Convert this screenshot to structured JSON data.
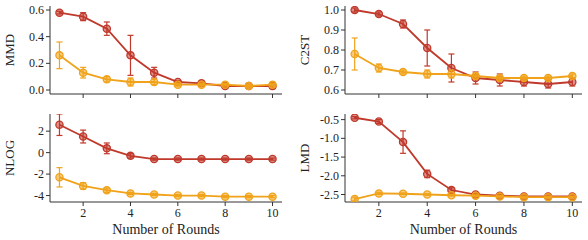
{
  "chart_data": [
    {
      "type": "line",
      "ylabel": "MMD",
      "tick_labels": "y",
      "marker": "circle",
      "x": [
        1,
        2,
        3,
        4,
        5,
        6,
        7,
        8,
        9,
        10
      ],
      "xlim": [
        0.6,
        10.4
      ],
      "xticks": [
        2,
        4,
        6,
        8,
        10
      ],
      "ylim": [
        -0.03,
        0.63
      ],
      "yticks": [
        {
          "value": 0,
          "label": "0.0"
        },
        {
          "value": 0.2,
          "label": "0.2"
        },
        {
          "value": 0.4,
          "label": "0.4"
        },
        {
          "value": 0.6,
          "label": "0.6"
        }
      ],
      "series": [
        {
          "color": "#c0392b",
          "values": [
            0.58,
            0.55,
            0.46,
            0.26,
            0.13,
            0.06,
            0.05,
            0.03,
            0.03,
            0.03
          ],
          "errors": [
            0.01,
            0.03,
            0.05,
            0.15,
            0.04,
            0.01,
            0.01,
            0.01,
            0.01,
            0.02
          ]
        },
        {
          "color": "#f0a31a",
          "values": [
            0.26,
            0.13,
            0.08,
            0.06,
            0.06,
            0.04,
            0.04,
            0.04,
            0.03,
            0.04
          ],
          "errors": [
            0.1,
            0.04,
            0.02,
            0.03,
            0.02,
            0.01,
            0.01,
            0.01,
            0.01,
            0.01
          ]
        }
      ]
    },
    {
      "type": "line",
      "ylabel": "C2ST",
      "tick_labels": "y",
      "marker": "circle",
      "x": [
        1,
        2,
        3,
        4,
        5,
        6,
        7,
        8,
        9,
        10
      ],
      "xlim": [
        0.6,
        10.4
      ],
      "xticks": [
        2,
        4,
        6,
        8,
        10
      ],
      "ylim": [
        0.58,
        1.02
      ],
      "yticks": [
        0.6,
        0.7,
        0.8,
        0.9,
        {
          "value": 1,
          "label": "1.0"
        }
      ],
      "series": [
        {
          "color": "#c0392b",
          "values": [
            1.0,
            0.98,
            0.93,
            0.81,
            0.71,
            0.66,
            0.65,
            0.64,
            0.63,
            0.64
          ],
          "errors": [
            0.01,
            0.01,
            0.02,
            0.09,
            0.07,
            0.03,
            0.03,
            0.02,
            0.02,
            0.02
          ]
        },
        {
          "color": "#f0a31a",
          "values": [
            0.78,
            0.71,
            0.69,
            0.68,
            0.68,
            0.67,
            0.66,
            0.66,
            0.66,
            0.67
          ],
          "errors": [
            0.08,
            0.02,
            0.01,
            0.02,
            0.02,
            0.01,
            0.01,
            0.01,
            0.01,
            0.01
          ]
        }
      ]
    },
    {
      "type": "line",
      "ylabel": "NLOG",
      "xlabel": "Number of Rounds",
      "marker": "circle",
      "x": [
        1,
        2,
        3,
        4,
        5,
        6,
        7,
        8,
        9,
        10
      ],
      "xlim": [
        0.6,
        10.4
      ],
      "xticks": [
        2,
        4,
        6,
        8,
        10
      ],
      "ylim": [
        -4.6,
        3.6
      ],
      "yticks": [
        -4,
        -2,
        0,
        2
      ],
      "series": [
        {
          "color": "#c0392b",
          "values": [
            2.6,
            1.5,
            0.4,
            -0.3,
            -0.6,
            -0.6,
            -0.6,
            -0.6,
            -0.6,
            -0.6
          ],
          "errors": [
            1.0,
            0.6,
            0.5,
            0.2,
            0.1,
            0.1,
            0.1,
            0.1,
            0.1,
            0.1
          ]
        },
        {
          "color": "#f0a31a",
          "values": [
            -2.3,
            -3.1,
            -3.5,
            -3.8,
            -3.9,
            -4.0,
            -4.0,
            -4.1,
            -4.1,
            -4.1
          ],
          "errors": [
            0.9,
            0.3,
            0.2,
            0.1,
            0.1,
            0.1,
            0.1,
            0.1,
            0.1,
            0.1
          ]
        }
      ]
    },
    {
      "type": "line",
      "ylabel": "LMD",
      "xlabel": "Number of Rounds",
      "marker": "circle",
      "x": [
        1,
        2,
        3,
        4,
        5,
        6,
        7,
        8,
        9,
        10
      ],
      "xlim": [
        0.6,
        10.4
      ],
      "xticks": [
        2,
        4,
        6,
        8,
        10
      ],
      "ylim": [
        -2.7,
        -0.35
      ],
      "yticks": [
        -2.5,
        {
          "value": -2,
          "label": "-2.0"
        },
        -1.5,
        {
          "value": -1,
          "label": "-1.0"
        },
        -0.5
      ],
      "series": [
        {
          "color": "#c0392b",
          "values": [
            -0.45,
            -0.55,
            -1.1,
            -1.95,
            -2.38,
            -2.5,
            -2.53,
            -2.55,
            -2.55,
            -2.55
          ],
          "errors": [
            0.03,
            0.05,
            0.3,
            0.1,
            0.06,
            0.03,
            0.03,
            0.03,
            0.03,
            0.03
          ]
        },
        {
          "color": "#f0a31a",
          "values": [
            -2.62,
            -2.47,
            -2.48,
            -2.5,
            -2.52,
            -2.53,
            -2.55,
            -2.57,
            -2.57,
            -2.57
          ],
          "errors": [
            0.05,
            0.03,
            0.02,
            0.02,
            0.02,
            0.02,
            0.02,
            0.02,
            0.02,
            0.02
          ]
        }
      ]
    }
  ]
}
